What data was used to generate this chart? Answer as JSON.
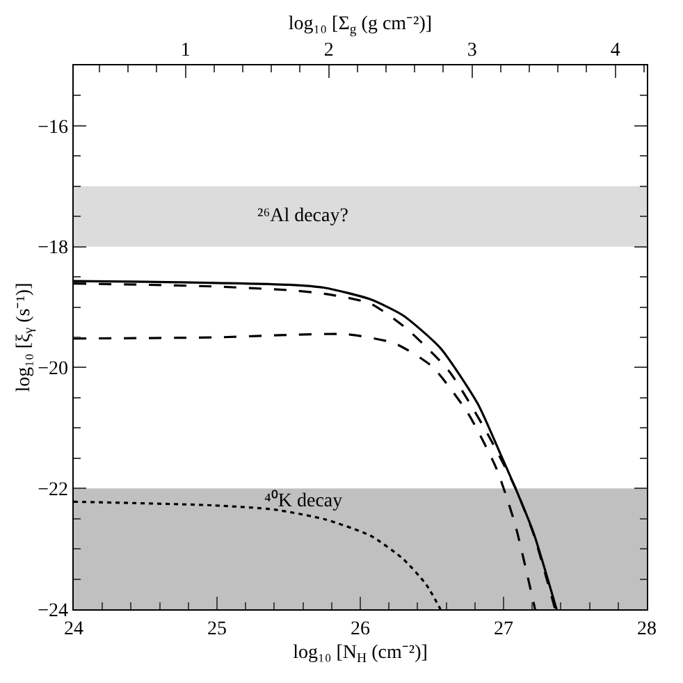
{
  "chart_data": {
    "type": "line",
    "xlabel": "log₁₀ [N$_{H}$ (cm⁻²)]",
    "ylabel": "log₁₀ [ξ$_{γ}$ (s⁻¹)]",
    "x2label": "log₁₀ [Σ$_{g}$ (g cm⁻²)]",
    "xlim": [
      24,
      28
    ],
    "xticks": [
      24,
      25,
      26,
      27,
      28
    ],
    "ylim": [
      -24,
      -15
    ],
    "yticks": [
      -24,
      -22,
      -20,
      -18,
      -16
    ],
    "x2lim": [
      0.22,
      4.22
    ],
    "x2ticks": [
      1,
      2,
      3,
      4
    ],
    "series": [
      {
        "color": "#000000",
        "line_style": "solid",
        "x": [
          24,
          24.5,
          25,
          25.5,
          25.75,
          26.07,
          26.3,
          26.56,
          26.82,
          26.98,
          27.08,
          27.21,
          27.37
        ],
        "values": [
          -18.57,
          -18.58,
          -18.6,
          -18.63,
          -18.68,
          -18.87,
          -19.14,
          -19.68,
          -20.6,
          -21.44,
          -21.98,
          -22.74,
          -24
        ]
      },
      {
        "color": "#000000",
        "line_style": "dashed",
        "x": [
          24,
          24.5,
          25,
          25.5,
          25.75,
          26.07,
          26.33,
          26.62,
          26.88,
          27.08,
          27.21,
          27.36
        ],
        "values": [
          -18.61,
          -18.63,
          -18.66,
          -18.72,
          -18.78,
          -18.94,
          -19.37,
          -20.06,
          -21.06,
          -21.98,
          -22.76,
          -24
        ]
      },
      {
        "color": "#000000",
        "line_style": "dashed",
        "x": [
          24,
          25,
          25.5,
          25.91,
          26.24,
          26.5,
          26.75,
          26.95,
          27.08,
          27.22
        ],
        "values": [
          -19.52,
          -19.5,
          -19.46,
          -19.45,
          -19.6,
          -19.98,
          -20.75,
          -21.67,
          -22.59,
          -24
        ]
      },
      {
        "color": "#000000",
        "line_style": "dotted",
        "x": [
          24,
          24.97,
          25.4,
          25.75,
          26.07,
          26.3,
          26.46,
          26.56
        ],
        "values": [
          -22.22,
          -22.28,
          -22.35,
          -22.51,
          -22.78,
          -23.17,
          -23.59,
          -24
        ]
      }
    ],
    "bands": [
      {
        "axis": "y",
        "from": -18,
        "to": -17,
        "color": "#dcdcdc",
        "label": "²⁶Al decay?"
      },
      {
        "axis": "y",
        "from": -24,
        "to": -22,
        "color": "#c0c0c0",
        "label": "⁴⁰K decay"
      }
    ]
  }
}
